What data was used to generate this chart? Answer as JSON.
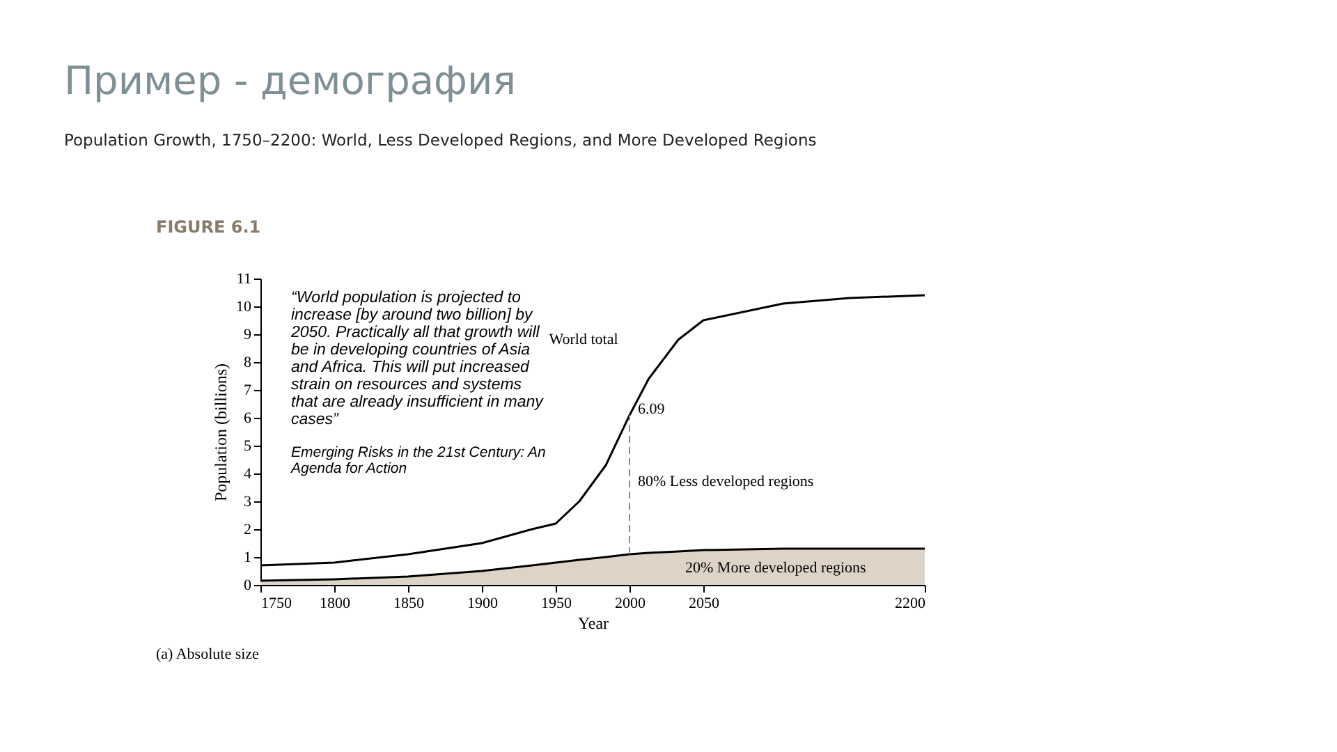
{
  "chart_data": {
    "type": "line",
    "title": "Пример - демография",
    "subtitle": "Population Growth, 1750–2200: World, Less Developed Regions, and More Developed Regions",
    "xlabel": "Year",
    "ylabel": "Population (billions)",
    "x": [
      1750,
      1800,
      1850,
      1900,
      1934,
      1950,
      1966,
      1984,
      2000,
      2013,
      2033,
      2050,
      2104,
      2149,
      2200
    ],
    "series": [
      {
        "name": "World total",
        "color": "#000000",
        "values": [
          0.7,
          0.8,
          1.1,
          1.5,
          2.0,
          2.2,
          3.0,
          4.3,
          6.09,
          7.4,
          8.8,
          9.5,
          10.1,
          10.3,
          10.4
        ]
      },
      {
        "type": "area",
        "color": "#ddd3c6",
        "values": [
          0.15,
          0.2,
          0.3,
          0.5,
          0.7,
          0.8,
          0.9,
          1.0,
          1.1,
          1.15,
          1.2,
          1.25,
          1.3,
          1.3,
          1.3
        ]
      }
    ],
    "xlim": [
      1750,
      2200
    ],
    "xticks": [
      1750,
      1800,
      1850,
      1900,
      1950,
      2000,
      2050,
      2200
    ],
    "ylim": [
      0,
      11
    ],
    "yticks": [
      0,
      1,
      2,
      3,
      4,
      5,
      6,
      7,
      8,
      9,
      10,
      11
    ],
    "grid": false,
    "legend": false,
    "ref_lines": [
      {
        "axis": "x",
        "value": 2000,
        "line_style": "dashed",
        "color": "#888888"
      }
    ],
    "annotations": [
      "FIGURE 6.1",
      "“World population is projected to\nincrease [by around two billion] by\n2050. Practically all that growth will\nbe in developing countries of Asia\nand Africa. This will put increased\nstrain on resources and systems\nthat are already insufficient in many\ncases”",
      "Emerging Risks in the 21st Century: An\nAgenda for Action",
      "(a) Absolute size",
      {
        "text": "6.09",
        "x": 2000,
        "y": 6.09
      },
      {
        "text": "80% Less developed regions",
        "x": 2000,
        "y": 3.5
      },
      "20% More developed regions"
    ]
  }
}
